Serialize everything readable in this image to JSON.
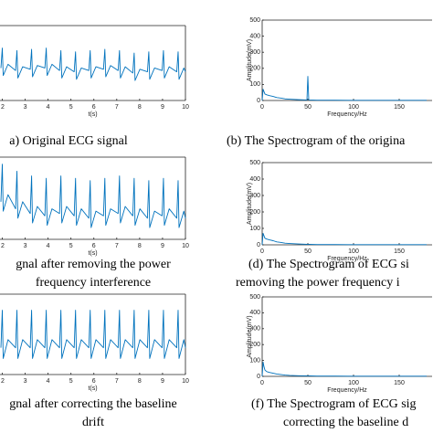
{
  "chart_data": [
    {
      "type": "line",
      "caption": [
        "a) Original ECG signal"
      ],
      "xlabel": "t(s)",
      "xlim": [
        1.9,
        10
      ],
      "xticks": [
        2,
        3,
        4,
        5,
        6,
        7,
        8,
        9,
        10
      ],
      "ylim": [
        -1,
        2
      ],
      "color": "#0072bd",
      "x": [
        1.94,
        2.0,
        2.04,
        2.25,
        2.58,
        2.64,
        2.68,
        2.89,
        3.22,
        3.28,
        3.32,
        3.53,
        3.86,
        3.92,
        3.96,
        4.17,
        4.5,
        4.56,
        4.6,
        4.81,
        5.14,
        5.2,
        5.24,
        5.45,
        5.78,
        5.84,
        5.88,
        6.09,
        6.42,
        6.48,
        6.52,
        6.73,
        7.06,
        7.12,
        7.16,
        7.37,
        7.7,
        7.76,
        7.8,
        8.01,
        8.34,
        8.4,
        8.44,
        8.65,
        8.98,
        9.04,
        9.08,
        9.29,
        9.62,
        9.68,
        9.72,
        9.93,
        10.0
      ],
      "values": [
        0.3,
        1.1,
        0.0,
        0.45,
        0.2,
        1.0,
        -0.1,
        0.35,
        0.25,
        1.05,
        -0.05,
        0.4,
        0.3,
        1.1,
        0.0,
        0.45,
        0.2,
        1.0,
        -0.1,
        0.35,
        0.15,
        0.95,
        -0.15,
        0.3,
        0.2,
        1.0,
        -0.1,
        0.35,
        0.25,
        1.05,
        -0.05,
        0.4,
        0.2,
        1.0,
        -0.1,
        0.35,
        0.1,
        0.9,
        -0.2,
        0.25,
        0.15,
        0.95,
        -0.15,
        0.3,
        0.2,
        1.0,
        -0.1,
        0.35,
        0.15,
        0.95,
        -0.15,
        0.3,
        0.15
      ]
    },
    {
      "type": "line",
      "caption": [
        "(b) The Spectrogram of the origina"
      ],
      "xlabel": "Frequency/Hz",
      "ylabel": "Amplitude(mV)",
      "xlim": [
        0,
        186
      ],
      "xticks": [
        0,
        50,
        100,
        150
      ],
      "ylim": [
        0,
        500
      ],
      "yticks": [
        0,
        100,
        200,
        300,
        400,
        500
      ],
      "color": "#0072bd",
      "x": [
        0,
        1,
        2,
        3,
        5,
        8,
        12,
        16,
        20,
        25,
        30,
        40,
        49,
        50,
        51,
        60,
        80,
        100,
        130,
        160,
        180
      ],
      "values": [
        0,
        70,
        55,
        40,
        35,
        30,
        25,
        18,
        15,
        10,
        8,
        5,
        3,
        150,
        3,
        2,
        2,
        1,
        1,
        1,
        1
      ]
    },
    {
      "type": "line",
      "caption": [
        "gnal after removing the power",
        "frequency interference"
      ],
      "xlabel": "t(s)",
      "xlim": [
        1.9,
        10
      ],
      "xticks": [
        2,
        3,
        4,
        5,
        6,
        7,
        8,
        9,
        10
      ],
      "ylim": [
        -1,
        2.5
      ],
      "color": "#0072bd",
      "x": [
        1.94,
        2.0,
        2.04,
        2.25,
        2.58,
        2.64,
        2.68,
        2.89,
        3.22,
        3.28,
        3.32,
        3.53,
        3.86,
        3.92,
        3.96,
        4.17,
        4.5,
        4.56,
        4.6,
        4.81,
        5.14,
        5.2,
        5.24,
        5.45,
        5.78,
        5.84,
        5.88,
        6.09,
        6.42,
        6.48,
        6.52,
        6.73,
        7.06,
        7.12,
        7.16,
        7.37,
        7.7,
        7.76,
        7.8,
        8.01,
        8.34,
        8.4,
        8.44,
        8.65,
        8.98,
        9.04,
        9.08,
        9.29,
        9.62,
        9.68,
        9.72,
        9.93,
        10.0
      ],
      "values": [
        0.6,
        2.2,
        0.2,
        0.9,
        0.3,
        1.9,
        -0.1,
        0.6,
        0.1,
        1.7,
        -0.3,
        0.4,
        0,
        1.6,
        -0.4,
        0.3,
        0.1,
        1.7,
        -0.3,
        0.4,
        0,
        1.6,
        -0.4,
        0.3,
        -0.1,
        1.5,
        -0.5,
        0.2,
        0,
        1.6,
        -0.4,
        0.3,
        0.1,
        1.7,
        -0.3,
        0.4,
        0,
        1.6,
        -0.4,
        0.3,
        -0.1,
        1.5,
        -0.5,
        0.2,
        0,
        1.6,
        -0.4,
        0.3,
        -0.1,
        1.5,
        -0.5,
        0.2,
        -0.1
      ]
    },
    {
      "type": "line",
      "caption": [
        "(d) The Spectrogram of ECG si",
        "removing the power frequency i"
      ],
      "xlabel": "Frequency/Hz",
      "ylabel": "Amplitude(mV)",
      "xlim": [
        0,
        186
      ],
      "xticks": [
        0,
        50,
        100,
        150
      ],
      "ylim": [
        0,
        500
      ],
      "yticks": [
        0,
        100,
        200,
        300,
        400,
        500
      ],
      "color": "#0072bd",
      "x": [
        0,
        1,
        2,
        3,
        5,
        8,
        12,
        16,
        20,
        25,
        30,
        40,
        49,
        50,
        51,
        60,
        80,
        100,
        130,
        160,
        180
      ],
      "values": [
        0,
        70,
        55,
        40,
        35,
        30,
        25,
        18,
        15,
        10,
        8,
        5,
        3,
        3,
        3,
        2,
        2,
        1,
        1,
        1,
        1
      ]
    },
    {
      "type": "line",
      "caption": [
        "gnal after correcting the baseline",
        "drift"
      ],
      "xlabel": "t(s)",
      "xlim": [
        1.9,
        10
      ],
      "xticks": [
        2,
        3,
        4,
        5,
        6,
        7,
        8,
        9,
        10
      ],
      "ylim": [
        -1,
        2
      ],
      "color": "#0072bd",
      "x": [
        1.94,
        2.0,
        2.04,
        2.25,
        2.58,
        2.64,
        2.68,
        2.89,
        3.22,
        3.28,
        3.32,
        3.53,
        3.86,
        3.92,
        3.96,
        4.17,
        4.5,
        4.56,
        4.6,
        4.81,
        5.14,
        5.2,
        5.24,
        5.45,
        5.78,
        5.84,
        5.88,
        6.09,
        6.42,
        6.48,
        6.52,
        6.73,
        7.06,
        7.12,
        7.16,
        7.37,
        7.7,
        7.76,
        7.8,
        8.01,
        8.34,
        8.4,
        8.44,
        8.65,
        8.98,
        9.04,
        9.08,
        9.29,
        9.62,
        9.68,
        9.72,
        9.93,
        10.0
      ],
      "values": [
        0,
        1.4,
        -0.4,
        0.3,
        0,
        1.4,
        -0.4,
        0.3,
        0,
        1.4,
        -0.4,
        0.3,
        0,
        1.4,
        -0.4,
        0.3,
        0,
        1.4,
        -0.4,
        0.3,
        0,
        1.4,
        -0.4,
        0.3,
        0,
        1.4,
        -0.4,
        0.3,
        0,
        1.4,
        -0.4,
        0.3,
        0,
        1.4,
        -0.4,
        0.3,
        0,
        1.4,
        -0.4,
        0.3,
        0,
        1.4,
        -0.4,
        0.3,
        0,
        1.4,
        -0.4,
        0.3,
        0,
        1.4,
        -0.4,
        0.3,
        0
      ]
    },
    {
      "type": "line",
      "caption": [
        "(f) The Spectrogram of ECG sig",
        "correcting the baseline d"
      ],
      "xlabel": "Frequency/Hz",
      "ylabel": "Amplitude(mV)",
      "xlim": [
        0,
        186
      ],
      "xticks": [
        0,
        50,
        100,
        150
      ],
      "ylim": [
        0,
        500
      ],
      "yticks": [
        0,
        100,
        200,
        300,
        400,
        500
      ],
      "color": "#0072bd",
      "x": [
        0,
        1,
        2,
        3,
        5,
        8,
        12,
        16,
        20,
        25,
        30,
        40,
        49,
        50,
        51,
        60,
        80,
        100,
        130,
        160,
        180
      ],
      "values": [
        0,
        90,
        60,
        40,
        30,
        25,
        20,
        15,
        12,
        8,
        6,
        4,
        3,
        3,
        3,
        2,
        2,
        1,
        1,
        1,
        1
      ]
    }
  ]
}
